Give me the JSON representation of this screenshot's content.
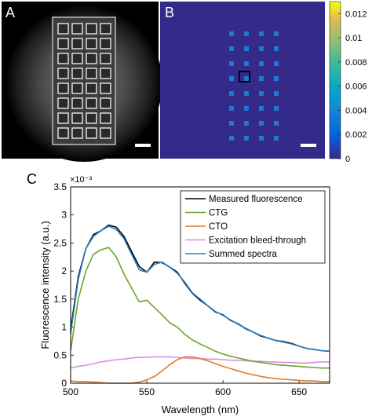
{
  "panels": {
    "a_label": "A",
    "b_label": "B",
    "c_label": "C"
  },
  "panel_b_colorbar": {
    "colormap": "parula",
    "range": [
      0,
      0.013
    ],
    "ticks": [
      "0",
      "0.002",
      "0.004",
      "0.006",
      "0.008",
      "0.01",
      "0.012"
    ],
    "tick_values": [
      0,
      0.002,
      0.004,
      0.006,
      0.008,
      0.01,
      0.012
    ]
  },
  "chart_data": {
    "type": "line",
    "xlabel": "Wavelength (nm)",
    "ylabel": "Fluorescence intensity (a.u.)",
    "exponent_label": "×10⁻³",
    "xlim": [
      500,
      670
    ],
    "ylim": [
      0,
      3.5
    ],
    "x_ticks": [
      500,
      550,
      600,
      650
    ],
    "y_ticks": [
      0,
      0.5,
      1,
      1.5,
      2,
      2.5,
      3,
      3.5
    ],
    "x_tick_labels": [
      "500",
      "550",
      "600",
      "650"
    ],
    "y_tick_labels": [
      "0",
      "0.5",
      "1",
      "1.5",
      "2",
      "2.5",
      "3",
      "3.5"
    ],
    "legend_position": "top-right",
    "series": [
      {
        "name": "Measured fluorescence",
        "color": "#000000",
        "x": [
          500,
          505,
          510,
          515,
          520,
          525,
          530,
          535,
          540,
          545,
          550,
          555,
          560,
          565,
          570,
          575,
          580,
          585,
          590,
          595,
          600,
          605,
          610,
          615,
          620,
          625,
          630,
          635,
          640,
          645,
          650,
          655,
          660,
          665,
          670
        ],
        "y": [
          0.95,
          1.9,
          2.4,
          2.65,
          2.72,
          2.82,
          2.78,
          2.62,
          2.35,
          2.08,
          1.98,
          2.16,
          2.15,
          2.07,
          1.98,
          1.78,
          1.6,
          1.48,
          1.38,
          1.27,
          1.22,
          1.12,
          1.06,
          0.97,
          0.91,
          0.84,
          0.8,
          0.76,
          0.74,
          0.71,
          0.66,
          0.62,
          0.6,
          0.58,
          0.57
        ]
      },
      {
        "name": "CTG",
        "color": "#6aa629",
        "x": [
          500,
          505,
          510,
          515,
          520,
          525,
          530,
          535,
          540,
          545,
          550,
          555,
          560,
          565,
          570,
          575,
          580,
          585,
          590,
          595,
          600,
          605,
          610,
          615,
          620,
          625,
          630,
          635,
          640,
          645,
          650,
          655,
          660,
          665,
          670
        ],
        "y": [
          0.58,
          1.5,
          2.0,
          2.3,
          2.38,
          2.42,
          2.25,
          1.95,
          1.7,
          1.45,
          1.48,
          1.35,
          1.22,
          1.08,
          1.0,
          0.87,
          0.77,
          0.7,
          0.64,
          0.57,
          0.52,
          0.48,
          0.45,
          0.42,
          0.39,
          0.37,
          0.35,
          0.33,
          0.32,
          0.31,
          0.3,
          0.29,
          0.28,
          0.27,
          0.27
        ]
      },
      {
        "name": "CTO",
        "color": "#e07b2c",
        "x": [
          500,
          505,
          510,
          515,
          520,
          525,
          530,
          535,
          540,
          545,
          550,
          555,
          560,
          565,
          570,
          575,
          580,
          585,
          590,
          595,
          600,
          605,
          610,
          615,
          620,
          625,
          630,
          635,
          640,
          645,
          650,
          655,
          660,
          665,
          670
        ],
        "y": [
          0.04,
          0.03,
          0.03,
          0.02,
          0.01,
          0.0,
          0.0,
          0.0,
          0.0,
          0.02,
          0.06,
          0.12,
          0.22,
          0.33,
          0.42,
          0.47,
          0.47,
          0.44,
          0.4,
          0.35,
          0.3,
          0.26,
          0.22,
          0.18,
          0.15,
          0.12,
          0.1,
          0.08,
          0.07,
          0.06,
          0.05,
          0.04,
          0.04,
          0.03,
          0.03
        ]
      },
      {
        "name": "Excitation bleed-through",
        "color": "#d98ee0",
        "x": [
          500,
          505,
          510,
          515,
          520,
          525,
          530,
          535,
          540,
          545,
          550,
          555,
          560,
          565,
          570,
          575,
          580,
          585,
          590,
          595,
          600,
          605,
          610,
          615,
          620,
          625,
          630,
          635,
          640,
          645,
          650,
          655,
          660,
          665,
          670
        ],
        "y": [
          0.27,
          0.3,
          0.32,
          0.35,
          0.38,
          0.4,
          0.42,
          0.43,
          0.45,
          0.46,
          0.46,
          0.47,
          0.47,
          0.47,
          0.46,
          0.45,
          0.44,
          0.44,
          0.43,
          0.43,
          0.42,
          0.41,
          0.41,
          0.4,
          0.39,
          0.39,
          0.38,
          0.38,
          0.37,
          0.37,
          0.36,
          0.36,
          0.37,
          0.38,
          0.38
        ]
      },
      {
        "name": "Summed spectra",
        "color": "#2b7ec1",
        "x": [
          500,
          505,
          510,
          515,
          520,
          525,
          530,
          535,
          540,
          545,
          550,
          555,
          560,
          565,
          570,
          575,
          580,
          585,
          590,
          595,
          600,
          605,
          610,
          615,
          620,
          625,
          630,
          635,
          640,
          645,
          650,
          655,
          660,
          665,
          670
        ],
        "y": [
          0.88,
          1.85,
          2.4,
          2.62,
          2.72,
          2.8,
          2.74,
          2.58,
          2.3,
          2.02,
          1.98,
          2.12,
          2.16,
          2.07,
          1.96,
          1.8,
          1.61,
          1.5,
          1.38,
          1.28,
          1.21,
          1.13,
          1.05,
          0.98,
          0.91,
          0.85,
          0.8,
          0.76,
          0.73,
          0.7,
          0.66,
          0.62,
          0.6,
          0.58,
          0.57
        ]
      }
    ]
  }
}
